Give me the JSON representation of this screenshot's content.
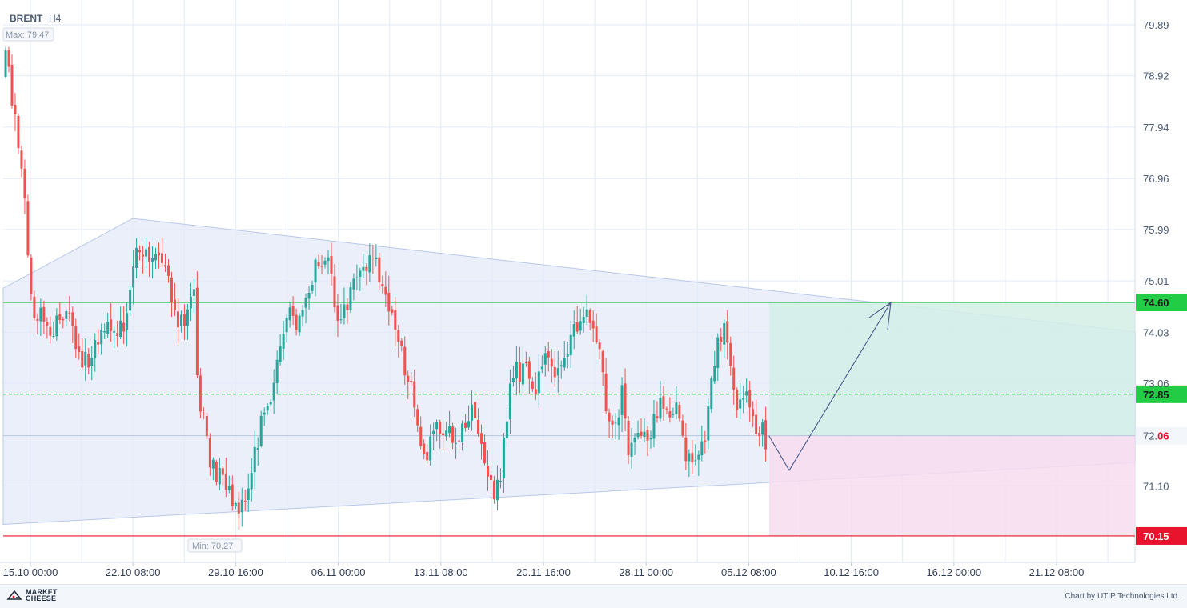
{
  "header": {
    "symbol": "BRENT",
    "timeframe": "H4"
  },
  "annotations": {
    "max_label": "Max: 79.47",
    "min_label": "Min: 70.27"
  },
  "footer": {
    "logo_line1": "MARKET",
    "logo_line2": "CHEESE",
    "credit": "Chart by UTIP Technologies Ltd."
  },
  "colors": {
    "up": "#26a69a",
    "down": "#ef5350",
    "grid": "#e3e9f7",
    "triangle_fill": "#e3eaf8",
    "take_profit_zone": "#d3eee6",
    "stop_loss_zone": "#f7dcef",
    "take_profit_line": "#22cc44",
    "stop_loss_line": "#e8142d",
    "forecast_arrow": "#4a5a8a"
  },
  "chart_data": {
    "type": "candlestick",
    "y_axis": {
      "range": [
        70.0,
        80.2
      ],
      "ticks": [
        "79.89",
        "78.92",
        "77.94",
        "76.96",
        "75.99",
        "75.01",
        "74.03",
        "73.06",
        "71.10"
      ]
    },
    "x_axis": {
      "ticks": [
        "15.10 00:00",
        "22.10 08:00",
        "29.10 16:00",
        "06.11 00:00",
        "13.11 08:00",
        "20.11 16:00",
        "28.11 00:00",
        "05.12 08:00",
        "10.12 16:00",
        "16.12 00:00",
        "21.12 08:00"
      ]
    },
    "levels": [
      {
        "name": "take-profit",
        "value": 74.6,
        "label": "74.60",
        "style": "solid"
      },
      {
        "name": "entry",
        "value": 72.85,
        "label": "72.85",
        "style": "dashed"
      },
      {
        "name": "current",
        "value": 72.06,
        "label_prefix": "72.",
        "label_suffix": "06"
      },
      {
        "name": "stop-loss",
        "value": 70.15,
        "label": "70.15",
        "style": "solid"
      }
    ],
    "max": 79.47,
    "min": 70.27,
    "anchors": [
      {
        "bar": 0,
        "price": 79.4
      },
      {
        "bar": 2,
        "price": 78.4
      },
      {
        "bar": 4,
        "price": 77.6
      },
      {
        "bar": 6,
        "price": 76.7
      },
      {
        "bar": 7,
        "price": 75.3
      },
      {
        "bar": 9,
        "price": 74.3
      },
      {
        "bar": 11,
        "price": 74.4
      },
      {
        "bar": 15,
        "price": 74.1
      },
      {
        "bar": 19,
        "price": 74.5
      },
      {
        "bar": 23,
        "price": 73.7
      },
      {
        "bar": 26,
        "price": 73.3
      },
      {
        "bar": 30,
        "price": 74.1
      },
      {
        "bar": 35,
        "price": 74.1
      },
      {
        "bar": 38,
        "price": 74.3
      },
      {
        "bar": 41,
        "price": 75.5
      },
      {
        "bar": 44,
        "price": 75.4
      },
      {
        "bar": 47,
        "price": 75.6
      },
      {
        "bar": 50,
        "price": 75.1
      },
      {
        "bar": 53,
        "price": 74.5
      },
      {
        "bar": 56,
        "price": 74.0
      },
      {
        "bar": 58,
        "price": 74.9
      },
      {
        "bar": 59,
        "price": 74.7
      },
      {
        "bar": 60,
        "price": 73.0
      },
      {
        "bar": 62,
        "price": 72.4
      },
      {
        "bar": 64,
        "price": 71.6
      },
      {
        "bar": 68,
        "price": 71.1
      },
      {
        "bar": 71,
        "price": 70.9
      },
      {
        "bar": 73,
        "price": 70.7
      },
      {
        "bar": 76,
        "price": 71.2
      },
      {
        "bar": 79,
        "price": 72.0
      },
      {
        "bar": 82,
        "price": 72.7
      },
      {
        "bar": 85,
        "price": 73.3
      },
      {
        "bar": 88,
        "price": 74.4
      },
      {
        "bar": 91,
        "price": 74.2
      },
      {
        "bar": 94,
        "price": 74.9
      },
      {
        "bar": 97,
        "price": 75.2
      },
      {
        "bar": 100,
        "price": 75.4
      },
      {
        "bar": 102,
        "price": 75.2
      },
      {
        "bar": 104,
        "price": 74.2
      },
      {
        "bar": 107,
        "price": 74.5
      },
      {
        "bar": 110,
        "price": 75.1
      },
      {
        "bar": 113,
        "price": 75.2
      },
      {
        "bar": 116,
        "price": 75.5
      },
      {
        "bar": 118,
        "price": 74.9
      },
      {
        "bar": 121,
        "price": 74.3
      },
      {
        "bar": 124,
        "price": 73.7
      },
      {
        "bar": 127,
        "price": 72.9
      },
      {
        "bar": 129,
        "price": 72.2
      },
      {
        "bar": 132,
        "price": 71.7
      },
      {
        "bar": 135,
        "price": 72.1
      },
      {
        "bar": 138,
        "price": 72.3
      },
      {
        "bar": 141,
        "price": 71.9
      },
      {
        "bar": 144,
        "price": 72.3
      },
      {
        "bar": 147,
        "price": 72.6
      },
      {
        "bar": 150,
        "price": 71.6
      },
      {
        "bar": 152,
        "price": 71.0
      },
      {
        "bar": 155,
        "price": 71.2
      },
      {
        "bar": 158,
        "price": 73.2
      },
      {
        "bar": 162,
        "price": 73.3
      },
      {
        "bar": 166,
        "price": 73.0
      },
      {
        "bar": 169,
        "price": 73.6
      },
      {
        "bar": 172,
        "price": 73.0
      },
      {
        "bar": 175,
        "price": 73.7
      },
      {
        "bar": 178,
        "price": 74.0
      },
      {
        "bar": 181,
        "price": 74.5
      },
      {
        "bar": 183,
        "price": 74.1
      },
      {
        "bar": 186,
        "price": 73.9
      },
      {
        "bar": 188,
        "price": 72.5
      },
      {
        "bar": 191,
        "price": 72.3
      },
      {
        "bar": 193,
        "price": 72.9
      },
      {
        "bar": 195,
        "price": 71.7
      },
      {
        "bar": 198,
        "price": 72.3
      },
      {
        "bar": 201,
        "price": 71.8
      },
      {
        "bar": 204,
        "price": 72.6
      },
      {
        "bar": 207,
        "price": 72.7
      },
      {
        "bar": 210,
        "price": 72.5
      },
      {
        "bar": 213,
        "price": 71.8
      },
      {
        "bar": 216,
        "price": 71.7
      },
      {
        "bar": 219,
        "price": 72.1
      },
      {
        "bar": 222,
        "price": 73.6
      },
      {
        "bar": 225,
        "price": 74.0
      },
      {
        "bar": 227,
        "price": 73.6
      },
      {
        "bar": 229,
        "price": 72.5
      },
      {
        "bar": 232,
        "price": 72.7
      },
      {
        "bar": 235,
        "price": 72.0
      },
      {
        "bar": 237,
        "price": 72.1
      },
      {
        "bar": 238,
        "price": 71.8
      }
    ]
  }
}
